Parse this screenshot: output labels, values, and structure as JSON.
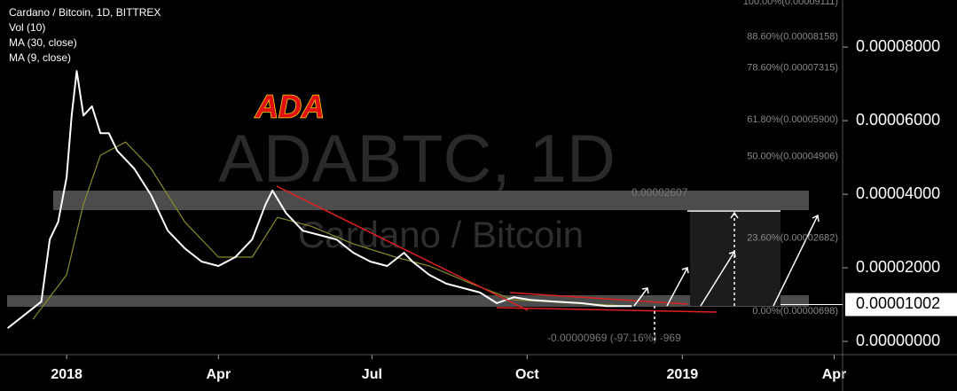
{
  "chart_data": {
    "type": "line",
    "title": "Cardano / Bitcoin, 1D, BITTREX",
    "indicators": [
      "Vol (10)",
      "MA (30, close)",
      "MA (9, close)"
    ],
    "watermark": [
      "ADABTC, 1D",
      "Cardano / Bitcoin"
    ],
    "annotations": [
      "ADA",
      "0.00002607",
      "-0.00000969 (-97.16%) -969"
    ],
    "xlim": [
      -39.5,
      460
    ],
    "xticks": [
      {
        "value": 0,
        "label": "2018"
      },
      {
        "value": 90,
        "label": "Apr"
      },
      {
        "value": 181,
        "label": "Jul"
      },
      {
        "value": 273,
        "label": "Oct"
      },
      {
        "value": 365,
        "label": "2019"
      },
      {
        "value": 455,
        "label": "Apr"
      }
    ],
    "ylim": [
      -3.6e-06,
      9.28e-05
    ],
    "yticks": [
      {
        "value": 0,
        "label": "0.00000000"
      },
      {
        "value": 2e-05,
        "label": "0.00002000"
      },
      {
        "value": 4e-05,
        "label": "0.00004000"
      },
      {
        "value": 6e-05,
        "label": "0.00006000"
      },
      {
        "value": 8e-05,
        "label": "0.00008000"
      }
    ],
    "last_price": {
      "value": 1.002e-05,
      "label": "0.00001002"
    },
    "fib_levels": [
      {
        "value": 9.111e-05,
        "label": "100.00%(0.00009111)"
      },
      {
        "value": 8.158e-05,
        "label": "88.60%(0.00008158)"
      },
      {
        "value": 7.315e-05,
        "label": "78.60%(0.00007315)"
      },
      {
        "value": 5.9e-05,
        "label": "61.80%(0.00005900)"
      },
      {
        "value": 4.906e-05,
        "label": "50.00%(0.00004906)"
      },
      {
        "value": 2.682e-05,
        "label": "23.60%(0.00002682)"
      },
      {
        "value": 6.98e-06,
        "label": "0.00%(0.00000698)"
      }
    ],
    "grid": false,
    "series": [
      {
        "name": "ADABTC",
        "color": "#ffffff",
        "x": [
          -35,
          -25,
          -15,
          -10,
          -5,
          0,
          3,
          6,
          10,
          15,
          20,
          25,
          30,
          40,
          50,
          60,
          70,
          80,
          90,
          100,
          110,
          118,
          122,
          130,
          140,
          150,
          160,
          170,
          180,
          190,
          200,
          205,
          215,
          225,
          235,
          245,
          255,
          265,
          275,
          290,
          305,
          320,
          335
        ],
        "values": [
          3.6e-06,
          7.2e-06,
          1.08e-05,
          2.77e-05,
          3.25e-05,
          4.46e-05,
          6.14e-05,
          7.35e-05,
          6.14e-05,
          6.39e-05,
          5.66e-05,
          5.66e-05,
          5.18e-05,
          4.7e-05,
          3.98e-05,
          3.01e-05,
          2.53e-05,
          2.17e-05,
          2.05e-05,
          2.29e-05,
          2.77e-05,
          3.73e-05,
          4.1e-05,
          3.49e-05,
          3.01e-05,
          2.89e-05,
          2.77e-05,
          2.41e-05,
          2.17e-05,
          2.05e-05,
          2.41e-05,
          2.17e-05,
          1.81e-05,
          1.57e-05,
          1.45e-05,
          1.33e-05,
          1.04e-05,
          1.2e-05,
          1.13e-05,
          1.08e-05,
          1.04e-05,
          9.6e-06,
          9.6e-06
        ]
      },
      {
        "name": "MA (30, close)",
        "color": "#8b8b2a",
        "x": [
          -20,
          0,
          10,
          20,
          35,
          50,
          70,
          90,
          110,
          125,
          145,
          170,
          195,
          215,
          240,
          265,
          300,
          335
        ],
        "values": [
          6e-06,
          1.81e-05,
          3.73e-05,
          5.06e-05,
          5.42e-05,
          4.7e-05,
          3.25e-05,
          2.29e-05,
          2.29e-05,
          3.37e-05,
          3.13e-05,
          2.65e-05,
          2.29e-05,
          2.05e-05,
          1.57e-05,
          1.13e-05,
          1.04e-05,
          9.6e-06
        ]
      }
    ]
  }
}
